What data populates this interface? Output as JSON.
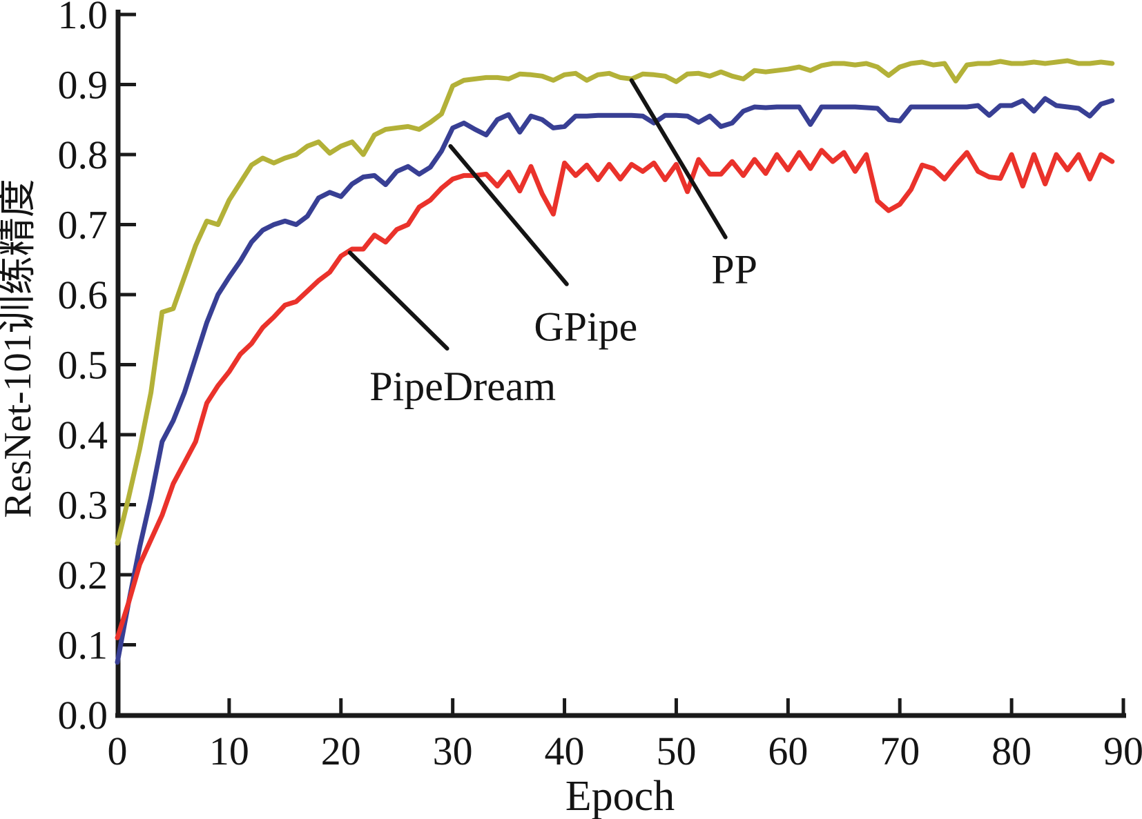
{
  "chart_data": {
    "type": "line",
    "title": "",
    "xlabel": "Epoch",
    "ylabel": "ResNet-101训练精度",
    "xlim": [
      0,
      90
    ],
    "ylim": [
      0.0,
      1.0
    ],
    "x_ticks": [
      0,
      10,
      20,
      30,
      40,
      50,
      60,
      70,
      80,
      90
    ],
    "y_ticks": [
      0.0,
      0.1,
      0.2,
      0.3,
      0.4,
      0.5,
      0.6,
      0.7,
      0.8,
      0.9,
      1.0
    ],
    "grid": false,
    "legend_position": "inline-annotations",
    "axis_color": "#1a1a1a",
    "x": [
      0,
      1,
      2,
      3,
      4,
      5,
      6,
      7,
      8,
      9,
      10,
      11,
      12,
      13,
      14,
      15,
      16,
      17,
      18,
      19,
      20,
      21,
      22,
      23,
      24,
      25,
      26,
      27,
      28,
      29,
      30,
      31,
      32,
      33,
      34,
      35,
      36,
      37,
      38,
      39,
      40,
      41,
      42,
      43,
      44,
      45,
      46,
      47,
      48,
      49,
      50,
      51,
      52,
      53,
      54,
      55,
      56,
      57,
      58,
      59,
      60,
      61,
      62,
      63,
      64,
      65,
      66,
      67,
      68,
      69,
      70,
      71,
      72,
      73,
      74,
      75,
      76,
      77,
      78,
      79,
      80,
      81,
      82,
      83,
      84,
      85,
      86,
      87,
      88,
      89
    ],
    "series": [
      {
        "name": "PP",
        "color": "#b3b138",
        "values": [
          0.245,
          0.31,
          0.38,
          0.46,
          0.575,
          0.58,
          0.625,
          0.67,
          0.705,
          0.7,
          0.735,
          0.76,
          0.785,
          0.795,
          0.788,
          0.795,
          0.8,
          0.812,
          0.818,
          0.802,
          0.812,
          0.818,
          0.8,
          0.828,
          0.836,
          0.838,
          0.84,
          0.836,
          0.846,
          0.858,
          0.898,
          0.906,
          0.908,
          0.91,
          0.91,
          0.908,
          0.915,
          0.914,
          0.912,
          0.906,
          0.914,
          0.916,
          0.906,
          0.914,
          0.916,
          0.91,
          0.908,
          0.915,
          0.914,
          0.912,
          0.904,
          0.915,
          0.916,
          0.912,
          0.918,
          0.912,
          0.908,
          0.92,
          0.918,
          0.92,
          0.922,
          0.925,
          0.92,
          0.927,
          0.93,
          0.93,
          0.928,
          0.93,
          0.925,
          0.913,
          0.925,
          0.93,
          0.932,
          0.928,
          0.93,
          0.905,
          0.928,
          0.93,
          0.93,
          0.933,
          0.93,
          0.93,
          0.932,
          0.93,
          0.932,
          0.934,
          0.93,
          0.93,
          0.932,
          0.93
        ]
      },
      {
        "name": "GPipe",
        "color": "#383f94",
        "values": [
          0.075,
          0.16,
          0.24,
          0.31,
          0.39,
          0.42,
          0.46,
          0.51,
          0.56,
          0.6,
          0.625,
          0.648,
          0.675,
          0.692,
          0.7,
          0.705,
          0.7,
          0.712,
          0.738,
          0.746,
          0.74,
          0.758,
          0.768,
          0.77,
          0.757,
          0.776,
          0.783,
          0.772,
          0.782,
          0.805,
          0.838,
          0.845,
          0.836,
          0.828,
          0.85,
          0.857,
          0.832,
          0.855,
          0.85,
          0.838,
          0.84,
          0.855,
          0.855,
          0.856,
          0.856,
          0.856,
          0.856,
          0.855,
          0.845,
          0.856,
          0.856,
          0.855,
          0.846,
          0.855,
          0.84,
          0.845,
          0.862,
          0.868,
          0.867,
          0.868,
          0.868,
          0.868,
          0.843,
          0.868,
          0.868,
          0.868,
          0.868,
          0.867,
          0.866,
          0.85,
          0.848,
          0.868,
          0.868,
          0.868,
          0.868,
          0.868,
          0.868,
          0.87,
          0.856,
          0.87,
          0.87,
          0.877,
          0.862,
          0.88,
          0.87,
          0.868,
          0.866,
          0.855,
          0.872,
          0.877
        ]
      },
      {
        "name": "PipeDream",
        "color": "#ea322b",
        "values": [
          0.11,
          0.16,
          0.215,
          0.25,
          0.285,
          0.33,
          0.36,
          0.39,
          0.445,
          0.47,
          0.49,
          0.515,
          0.53,
          0.553,
          0.568,
          0.585,
          0.59,
          0.605,
          0.62,
          0.632,
          0.655,
          0.665,
          0.665,
          0.685,
          0.675,
          0.693,
          0.7,
          0.725,
          0.735,
          0.752,
          0.765,
          0.77,
          0.77,
          0.772,
          0.755,
          0.775,
          0.748,
          0.783,
          0.744,
          0.715,
          0.788,
          0.77,
          0.785,
          0.764,
          0.786,
          0.765,
          0.786,
          0.776,
          0.788,
          0.764,
          0.786,
          0.747,
          0.793,
          0.772,
          0.772,
          0.79,
          0.77,
          0.793,
          0.773,
          0.8,
          0.778,
          0.803,
          0.78,
          0.806,
          0.79,
          0.803,
          0.776,
          0.8,
          0.734,
          0.72,
          0.729,
          0.75,
          0.785,
          0.78,
          0.765,
          0.785,
          0.803,
          0.776,
          0.768,
          0.766,
          0.8,
          0.755,
          0.8,
          0.758,
          0.8,
          0.778,
          0.8,
          0.765,
          0.8,
          0.79
        ]
      }
    ],
    "annotations": [
      {
        "label": "PipeDream",
        "points_to": {
          "epoch": 20.8,
          "value": 0.66
        },
        "line_end": {
          "epoch": 29.5,
          "value": 0.523
        },
        "label_at": {
          "epoch": 30.9,
          "value": 0.469
        }
      },
      {
        "label": "GPipe",
        "points_to": {
          "epoch": 29.8,
          "value": 0.812
        },
        "line_end": {
          "epoch": 40.2,
          "value": 0.615
        },
        "label_at": {
          "epoch": 41.9,
          "value": 0.554
        }
      },
      {
        "label": "PP",
        "points_to": {
          "epoch": 46.0,
          "value": 0.906
        },
        "line_end": {
          "epoch": 54.4,
          "value": 0.682
        },
        "label_at": {
          "epoch": 55.2,
          "value": 0.636
        }
      }
    ]
  }
}
